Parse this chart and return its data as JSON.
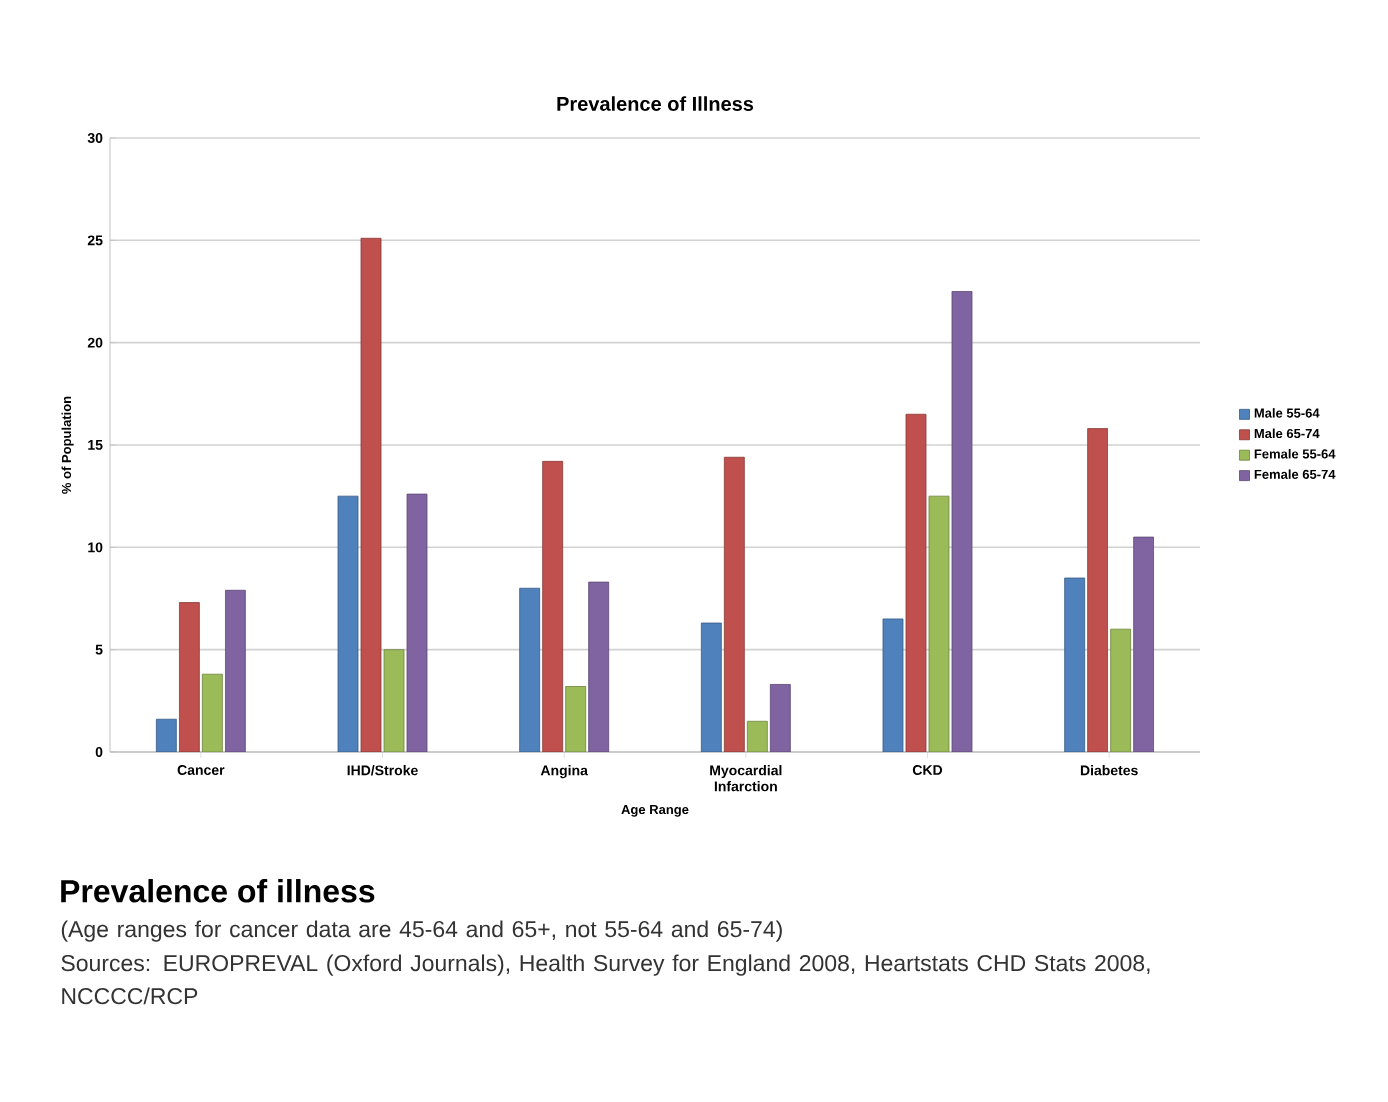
{
  "chart_data": {
    "type": "bar",
    "title": "Prevalence of Illness",
    "xlabel": "Age Range",
    "ylabel": "% of Population",
    "categories": [
      "Cancer",
      "IHD/Stroke",
      "Angina",
      "Myocardial Infarction",
      "CKD",
      "Diabetes"
    ],
    "series": [
      {
        "name": "Male 55-64",
        "color": "#4f81bd",
        "values": [
          1.6,
          12.5,
          8.0,
          6.3,
          6.5,
          8.5
        ]
      },
      {
        "name": "Male 65-74",
        "color": "#c0504d",
        "values": [
          7.3,
          25.1,
          14.2,
          14.4,
          16.5,
          15.8
        ]
      },
      {
        "name": "Female 55-64",
        "color": "#9bbb59",
        "values": [
          3.8,
          5.0,
          3.2,
          1.5,
          12.5,
          6.0
        ]
      },
      {
        "name": "Female 65-74",
        "color": "#8064a2",
        "values": [
          7.9,
          12.6,
          8.3,
          3.3,
          22.5,
          10.5
        ]
      }
    ],
    "ylim": [
      0,
      30
    ],
    "yticks": [
      0,
      5,
      10,
      15,
      20,
      25,
      30
    ],
    "grid": "y",
    "legend": "right",
    "annotations": [
      "Prevalence of illness",
      "(Age ranges for cancer data are 45-64 and 65+, not 55-64 and 65-74)",
      "Sources: EUROPREVAL (Oxford Journals), Health Survey for England 2008, Heartstats CHD Stats 2008, NCCCC/RCP"
    ]
  }
}
